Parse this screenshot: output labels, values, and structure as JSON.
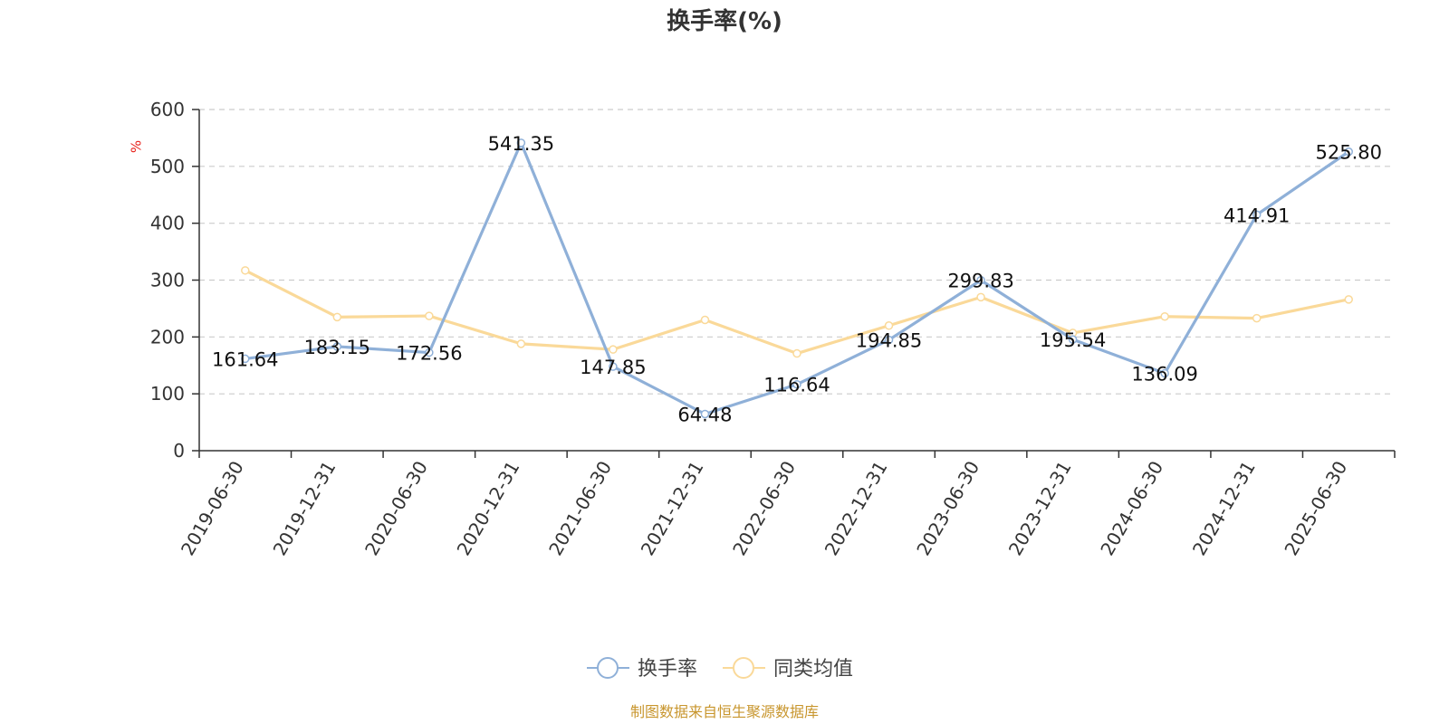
{
  "chart_data": {
    "type": "line",
    "title": "换手率(%)",
    "ylabel": "%",
    "xlabel": "",
    "ylim": [
      0,
      600
    ],
    "yticks": [
      0,
      100,
      200,
      300,
      400,
      500,
      600
    ],
    "grid": true,
    "legend_position": "bottom-center",
    "categories": [
      "2019-06-30",
      "2019-12-31",
      "2020-06-30",
      "2020-12-31",
      "2021-06-30",
      "2021-12-31",
      "2022-06-30",
      "2022-12-31",
      "2023-06-30",
      "2023-12-31",
      "2024-06-30",
      "2024-12-31",
      "2025-06-30"
    ],
    "series": [
      {
        "name": "换手率",
        "color": "#8fb0d8",
        "values": [
          161.64,
          183.15,
          172.56,
          541.35,
          147.85,
          64.48,
          116.64,
          194.85,
          299.83,
          195.54,
          136.09,
          414.91,
          525.8
        ],
        "labels": [
          "161.64",
          "183.15",
          "172.56",
          "541.35",
          "147.85",
          "64.48",
          "116.64",
          "194.85",
          "299.83",
          "195.54",
          "136.09",
          "414.91",
          "525.80"
        ]
      },
      {
        "name": "同类均值",
        "color": "#fad999",
        "values": [
          317,
          235,
          237,
          188,
          178,
          230,
          171,
          220,
          270,
          207,
          236,
          233,
          266
        ]
      }
    ],
    "source": "制图数据来自恒生聚源数据库"
  }
}
